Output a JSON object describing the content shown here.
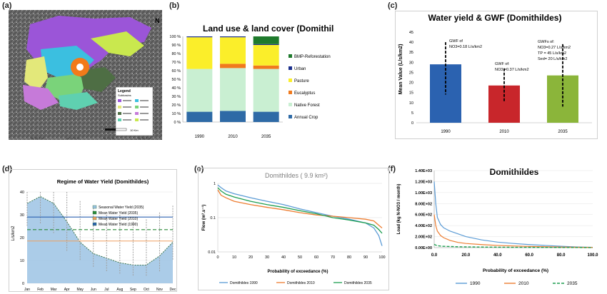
{
  "panels": {
    "a": {
      "label": "(a)",
      "legend_title": "Legend",
      "legend_subtitle": "Subbasins",
      "scale_label": "10 Km",
      "lon_ticks": [
        "46°20'0\"W",
        "46°10'0\"W",
        "46°0'0\"W",
        "45°50'0\"W"
      ]
    },
    "b": {
      "label": "(b)",
      "chart_data": {
        "type": "bar",
        "title": "Land use & land cover (Domithildes)",
        "categories": [
          "1990",
          "2010",
          "2035"
        ],
        "series": [
          {
            "name": "Annual Crop",
            "color": "#2e6aa6",
            "values": [
              12,
              13,
              12
            ]
          },
          {
            "name": "Native Forest",
            "color": "#c9efd2",
            "values": [
              50,
              50,
              50
            ]
          },
          {
            "name": "Eucalyptus",
            "color": "#f07a1e",
            "values": [
              0,
              5,
              4
            ]
          },
          {
            "name": "Pasture",
            "color": "#fbee2a",
            "values": [
              37,
              31,
              24
            ]
          },
          {
            "name": "Urban",
            "color": "#1b2f8c",
            "values": [
              1,
              1,
              1
            ]
          },
          {
            "name": "BMP-Reforestation",
            "color": "#1e7a2c",
            "values": [
              0,
              0,
              9
            ]
          }
        ],
        "ylim": [
          0,
          100
        ],
        "yticks": [
          "0 %",
          "10 %",
          "20 %",
          "30 %",
          "40 %",
          "50 %",
          "60 %",
          "70 %",
          "80 %",
          "90 %",
          "100 %"
        ]
      }
    },
    "c": {
      "label": "(c)",
      "chart_data": {
        "type": "bar",
        "title": "Water yield & GWF (Domithildes)",
        "ylabel": "Mean Value (L/s/km2)",
        "categories": [
          "1990",
          "2010",
          "2035"
        ],
        "values": [
          29,
          18.5,
          23.5
        ],
        "err_low": [
          14,
          10,
          8
        ],
        "err_high": [
          40,
          27,
          39
        ],
        "colors": [
          "#2b62b0",
          "#c8262b",
          "#8bb53a"
        ],
        "ylim": [
          0,
          45
        ],
        "yticks": [
          0,
          5,
          10,
          15,
          20,
          25,
          30,
          35,
          40,
          45
        ],
        "annotations": [
          [
            "GWF of",
            "NO3=0.18 L/s/km2"
          ],
          [
            "GWF of:",
            "NO3 =0.37 L/s/km2"
          ],
          [
            "GWFs of:",
            "NO3=0.27 L/s/km2",
            "TP = 45 L/s/km2",
            "Sed= 20 L/s/km2"
          ]
        ]
      }
    },
    "d": {
      "label": "(d)",
      "chart_data": {
        "type": "line",
        "title": "Regime of Water Yield (Domithildes)",
        "ylabel": "L/s/km2",
        "categories": [
          "Jan",
          "Feb",
          "Mar",
          "Apr",
          "May",
          "Jun",
          "Jul",
          "Aug",
          "Sep",
          "Oct",
          "Nov",
          "Dec"
        ],
        "ylim": [
          0,
          40
        ],
        "yticks": [
          0,
          10,
          20,
          30,
          40
        ],
        "series": [
          {
            "name": "Seasonal Water Yield (2035)",
            "color": "#9cc3e4",
            "values": [
              35,
              38,
              35,
              27,
              18,
              13,
              11,
              9,
              8,
              8,
              12,
              18
            ]
          },
          {
            "name": "Mean Water Yield (2035)",
            "color": "#2a8a3a",
            "values": [
              23.5,
              23.5,
              23.5,
              23.5,
              23.5,
              23.5,
              23.5,
              23.5,
              23.5,
              23.5,
              23.5,
              23.5
            ]
          },
          {
            "name": "Mean Water Yield (2010)",
            "color": "#f0a060",
            "values": [
              18.5,
              18.5,
              18.5,
              18.5,
              18.5,
              18.5,
              18.5,
              18.5,
              18.5,
              18.5,
              18.5,
              18.5
            ]
          },
          {
            "name": "Mean Water Yield (1990)",
            "color": "#2b62b0",
            "values": [
              29,
              29,
              29,
              29,
              29,
              29,
              29,
              29,
              29,
              29,
              29,
              29
            ]
          }
        ],
        "err_high": [
          50,
          55,
          52,
          45,
          36,
          33,
          30,
          30,
          27,
          28,
          31,
          34
        ],
        "err_low": [
          25,
          26,
          22,
          14,
          10,
          7,
          5,
          4,
          3,
          3,
          5,
          10
        ]
      }
    },
    "e": {
      "label": "(e)",
      "chart_data": {
        "type": "line",
        "title": "Domithildes ( 9.9 km²)",
        "ylabel": "Flow (m³.s⁻¹)",
        "xlabel": "Probability of exceedance (%)",
        "yscale": "log",
        "ylim": [
          0.01,
          1
        ],
        "yticks": [
          "1",
          "0.1",
          "0.01"
        ],
        "xlim": [
          0,
          100
        ],
        "xticks": [
          0,
          10,
          20,
          30,
          40,
          50,
          60,
          70,
          80,
          90,
          100
        ],
        "x": [
          0,
          2,
          5,
          10,
          20,
          30,
          40,
          50,
          60,
          70,
          80,
          90,
          95,
          98,
          100
        ],
        "series": [
          {
            "name": "Domithildes 1990",
            "color": "#5b9bd5",
            "values": [
              0.9,
              0.75,
              0.6,
              0.5,
              0.38,
              0.3,
              0.24,
              0.18,
              0.14,
              0.11,
              0.09,
              0.07,
              0.05,
              0.03,
              0.015
            ]
          },
          {
            "name": "Domithildes 2010",
            "color": "#ed7d31",
            "values": [
              0.65,
              0.45,
              0.38,
              0.3,
              0.24,
              0.2,
              0.17,
              0.14,
              0.12,
              0.11,
              0.1,
              0.09,
              0.08,
              0.06,
              0.05
            ]
          },
          {
            "name": "Domithildes 2035",
            "color": "#1e9e50",
            "values": [
              0.75,
              0.6,
              0.48,
              0.4,
              0.3,
              0.24,
              0.2,
              0.16,
              0.13,
              0.1,
              0.085,
              0.07,
              0.06,
              0.045,
              0.035
            ]
          }
        ]
      }
    },
    "f": {
      "label": "(f)",
      "chart_data": {
        "type": "line",
        "title": "Domithildes",
        "ylabel": "Load (kg N-NO3 / month)",
        "xlabel": "Probability of exceedance (%)",
        "ylim": [
          0,
          1400
        ],
        "yticks": [
          "0.00E+00",
          "2.00E+02",
          "4.00E+02",
          "6.00E+02",
          "8.00E+02",
          "1.00E+03",
          "1.20E+03",
          "1.40E+03"
        ],
        "xlim": [
          0,
          100
        ],
        "xticks": [
          "0.0",
          "20.0",
          "40.0",
          "60.0",
          "80.0",
          "100.0"
        ],
        "x": [
          0,
          1,
          2,
          4,
          6,
          10,
          15,
          20,
          30,
          40,
          50,
          60,
          70,
          80,
          90,
          100
        ],
        "series": [
          {
            "name": "1990",
            "color": "#5b9bd5",
            "values": [
              1200,
              800,
              550,
              420,
              360,
              300,
              250,
              200,
              140,
              100,
              75,
              55,
              40,
              25,
              12,
              5
            ]
          },
          {
            "name": "2010",
            "color": "#ed7d31",
            "values": [
              600,
              400,
              300,
              220,
              180,
              130,
              95,
              75,
              55,
              40,
              30,
              22,
              16,
              10,
              6,
              3
            ]
          },
          {
            "name": "2035",
            "color": "#1e9e50",
            "values": [
              60,
              45,
              35,
              28,
              24,
              20,
              16,
              13,
              10,
              8,
              6,
              5,
              4,
              3,
              2,
              1
            ]
          }
        ]
      }
    }
  }
}
